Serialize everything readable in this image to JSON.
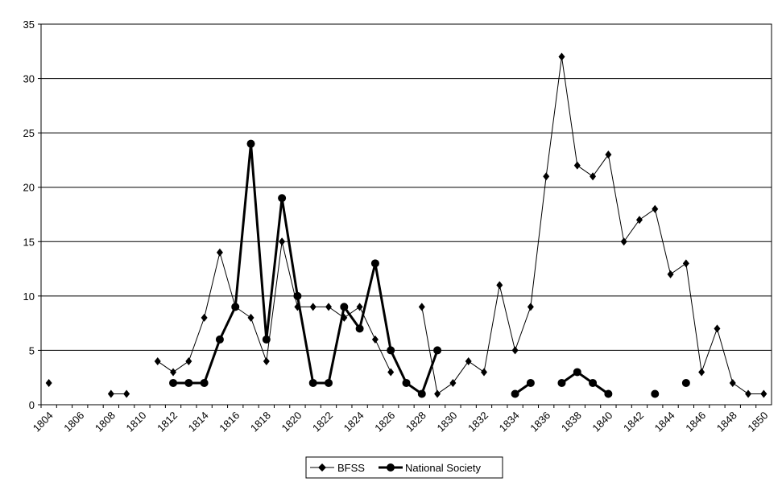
{
  "chart_data": {
    "type": "line",
    "title": "",
    "xlabel": "",
    "ylabel": "",
    "ylim": [
      0,
      35
    ],
    "yticks": [
      0,
      5,
      10,
      15,
      20,
      25,
      30,
      35
    ],
    "xlim": [
      1804,
      1850
    ],
    "xticks": [
      "1804",
      "1806",
      "1808",
      "1810",
      "1812",
      "1814",
      "1816",
      "1818",
      "1820",
      "1822",
      "1824",
      "1826",
      "1828",
      "1830",
      "1832",
      "1834",
      "1836",
      "1838",
      "1840",
      "1842",
      "1844",
      "1846",
      "1848",
      "1850"
    ],
    "grid": "horizontal",
    "legend": "bottom-center",
    "x": [
      1804,
      1805,
      1806,
      1807,
      1808,
      1809,
      1810,
      1811,
      1812,
      1813,
      1814,
      1815,
      1816,
      1817,
      1818,
      1819,
      1820,
      1821,
      1822,
      1823,
      1824,
      1825,
      1826,
      1827,
      1828,
      1829,
      1830,
      1831,
      1832,
      1833,
      1834,
      1835,
      1836,
      1837,
      1838,
      1839,
      1840,
      1841,
      1842,
      1843,
      1844,
      1845,
      1846,
      1847,
      1848,
      1849,
      1850
    ],
    "series": [
      {
        "name": "BFSS",
        "color": "#000000",
        "line_width": 1,
        "marker": "diamond",
        "values": [
          2,
          null,
          null,
          null,
          1,
          1,
          null,
          4,
          3,
          4,
          8,
          14,
          9,
          8,
          4,
          15,
          9,
          9,
          9,
          8,
          9,
          6,
          3,
          null,
          9,
          1,
          2,
          4,
          3,
          11,
          5,
          9,
          21,
          32,
          22,
          21,
          23,
          15,
          17,
          18,
          12,
          13,
          3,
          7,
          2,
          1,
          1
        ]
      },
      {
        "name": "National Society",
        "color": "#000000",
        "line_width": 3,
        "marker": "circle",
        "values": [
          null,
          null,
          null,
          null,
          null,
          null,
          null,
          null,
          2,
          2,
          2,
          6,
          9,
          24,
          6,
          19,
          10,
          2,
          2,
          9,
          7,
          13,
          5,
          2,
          1,
          5,
          null,
          null,
          null,
          null,
          1,
          2,
          null,
          2,
          3,
          2,
          1,
          null,
          null,
          1,
          null,
          2,
          null,
          null,
          null,
          null,
          null
        ]
      }
    ]
  }
}
